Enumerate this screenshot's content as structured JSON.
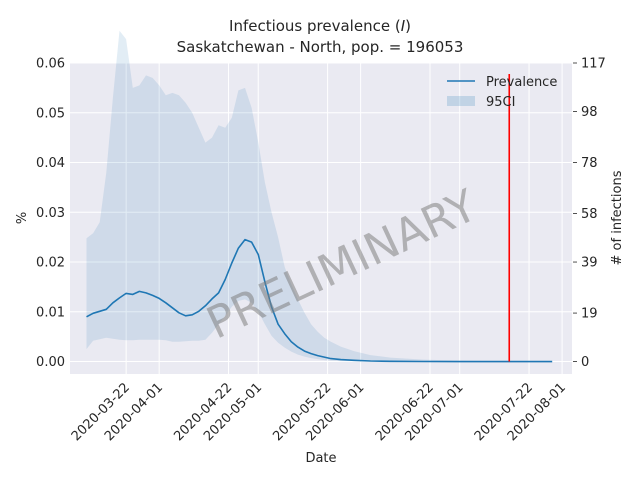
{
  "chart_data": {
    "type": "line",
    "title_line1": "Infectious prevalence (",
    "title_var": "I",
    "title_line1_end": ")",
    "title_line2": "Saskatchewan - North, pop. = 196053",
    "xlabel": "Date",
    "ylabel": "%",
    "ylabel_right": "# of infections",
    "watermark": "PRELIMINARY",
    "grid": true,
    "legend_position": "top-right",
    "x_range": [
      "2020-03-05",
      "2020-08-04"
    ],
    "ylim": [
      -0.0025,
      0.06
    ],
    "y_ticks": [
      0.0,
      0.01,
      0.02,
      0.03,
      0.04,
      0.05,
      0.06
    ],
    "y_tick_labels": [
      "0.00",
      "0.01",
      "0.02",
      "0.03",
      "0.04",
      "0.05",
      "0.06"
    ],
    "y2_ticks": [
      0,
      19,
      39,
      58,
      78,
      98,
      117
    ],
    "y2_tick_labels": [
      "0",
      "19",
      "39",
      "58",
      "78",
      "98",
      "117"
    ],
    "x_ticks": [
      "2020-03-22",
      "2020-04-01",
      "2020-04-22",
      "2020-05-01",
      "2020-05-22",
      "2020-06-01",
      "2020-06-22",
      "2020-07-01",
      "2020-07-22",
      "2020-08-01"
    ],
    "vline": {
      "date": "2020-07-16",
      "ymin": 0.0,
      "ymax": 0.0578,
      "color": "#ff0000"
    },
    "series": [
      {
        "name": "Prevalence",
        "color": "#1f77b4",
        "x": [
          "2020-03-10",
          "2020-03-12",
          "2020-03-14",
          "2020-03-16",
          "2020-03-18",
          "2020-03-20",
          "2020-03-22",
          "2020-03-24",
          "2020-03-26",
          "2020-03-28",
          "2020-03-30",
          "2020-04-01",
          "2020-04-03",
          "2020-04-05",
          "2020-04-07",
          "2020-04-09",
          "2020-04-11",
          "2020-04-13",
          "2020-04-15",
          "2020-04-17",
          "2020-04-19",
          "2020-04-21",
          "2020-04-23",
          "2020-04-25",
          "2020-04-27",
          "2020-04-29",
          "2020-05-01",
          "2020-05-03",
          "2020-05-05",
          "2020-05-07",
          "2020-05-09",
          "2020-05-11",
          "2020-05-13",
          "2020-05-15",
          "2020-05-17",
          "2020-05-19",
          "2020-05-21",
          "2020-05-23",
          "2020-05-26",
          "2020-05-30",
          "2020-06-04",
          "2020-06-10",
          "2020-06-20",
          "2020-07-01",
          "2020-07-10",
          "2020-07-20",
          "2020-07-29"
        ],
        "values": [
          0.009,
          0.0097,
          0.0101,
          0.0105,
          0.0118,
          0.0128,
          0.0137,
          0.0135,
          0.0141,
          0.0138,
          0.0133,
          0.0127,
          0.0118,
          0.0108,
          0.0098,
          0.0092,
          0.0094,
          0.0101,
          0.0112,
          0.0126,
          0.0138,
          0.0165,
          0.0198,
          0.0228,
          0.0245,
          0.024,
          0.0215,
          0.016,
          0.011,
          0.0075,
          0.0056,
          0.004,
          0.0029,
          0.0021,
          0.0016,
          0.0012,
          0.0009,
          0.0006,
          0.0004,
          0.00025,
          0.00012,
          6e-05,
          2e-05,
          0.0,
          0.0,
          0.0,
          0.0
        ]
      },
      {
        "name": "95CI",
        "color": "#1f77b4",
        "x": [
          "2020-03-10",
          "2020-03-12",
          "2020-03-14",
          "2020-03-16",
          "2020-03-18",
          "2020-03-20",
          "2020-03-22",
          "2020-03-24",
          "2020-03-26",
          "2020-03-28",
          "2020-03-30",
          "2020-04-01",
          "2020-04-03",
          "2020-04-05",
          "2020-04-07",
          "2020-04-09",
          "2020-04-11",
          "2020-04-13",
          "2020-04-15",
          "2020-04-17",
          "2020-04-19",
          "2020-04-21",
          "2020-04-23",
          "2020-04-25",
          "2020-04-27",
          "2020-04-29",
          "2020-05-01",
          "2020-05-03",
          "2020-05-05",
          "2020-05-07",
          "2020-05-09",
          "2020-05-11",
          "2020-05-13",
          "2020-05-15",
          "2020-05-17",
          "2020-05-19",
          "2020-05-21",
          "2020-05-23",
          "2020-05-26",
          "2020-05-30",
          "2020-06-04",
          "2020-06-10",
          "2020-06-20",
          "2020-07-01",
          "2020-07-10",
          "2020-07-20",
          "2020-07-29"
        ],
        "lower": [
          0.0025,
          0.0042,
          0.0045,
          0.0048,
          0.0046,
          0.0044,
          0.0043,
          0.0043,
          0.0044,
          0.0044,
          0.0044,
          0.0044,
          0.0043,
          0.004,
          0.004,
          0.0041,
          0.0042,
          0.0042,
          0.0044,
          0.0058,
          0.0075,
          0.0092,
          0.011,
          0.0122,
          0.0125,
          0.0118,
          0.01,
          0.0075,
          0.0052,
          0.0038,
          0.0028,
          0.002,
          0.0014,
          0.001,
          0.0007,
          0.0005,
          0.0003,
          0.0002,
          0.0001,
          5e-05,
          2e-05,
          0.0,
          0.0,
          0.0,
          0.0,
          0.0,
          0.0
        ],
        "upper": [
          0.0248,
          0.0258,
          0.028,
          0.038,
          0.053,
          0.0665,
          0.0648,
          0.055,
          0.0555,
          0.0575,
          0.057,
          0.0555,
          0.0535,
          0.054,
          0.0535,
          0.052,
          0.05,
          0.047,
          0.044,
          0.045,
          0.0475,
          0.047,
          0.049,
          0.0545,
          0.055,
          0.051,
          0.044,
          0.036,
          0.03,
          0.025,
          0.019,
          0.0155,
          0.0125,
          0.0098,
          0.0075,
          0.006,
          0.0048,
          0.004,
          0.003,
          0.0021,
          0.0013,
          0.0008,
          0.0004,
          0.0002,
          0.0001,
          3e-05,
          0.0
        ]
      }
    ]
  }
}
